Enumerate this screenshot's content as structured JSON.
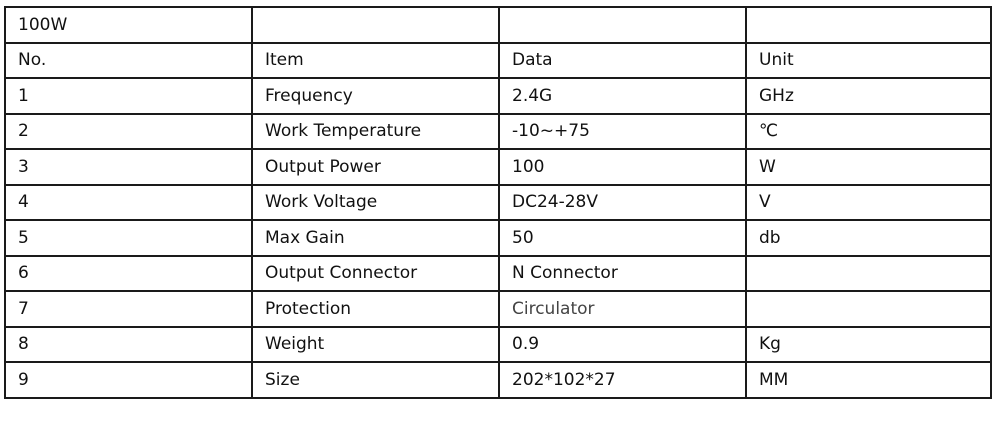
{
  "title_row": [
    "100W",
    "",
    "",
    ""
  ],
  "headers": [
    "No.",
    "Item",
    "Data",
    "Unit"
  ],
  "rows": [
    [
      "1",
      "Frequency",
      "2.4G",
      "GHz"
    ],
    [
      "2",
      "Work Temperature",
      "-10~+75",
      "℃"
    ],
    [
      "3",
      "Output Power",
      "100",
      "W"
    ],
    [
      "4",
      "Work Voltage",
      "DC24-28V",
      "V"
    ],
    [
      "5",
      "Max Gain",
      "50",
      "db"
    ],
    [
      "6",
      "Output Connector",
      "N Connector",
      ""
    ],
    [
      "7",
      "Protection",
      "Circulator",
      ""
    ],
    [
      "8",
      "Weight",
      "0.9",
      "Kg"
    ],
    [
      "9",
      "Size",
      "202*102*27",
      "MM"
    ]
  ]
}
